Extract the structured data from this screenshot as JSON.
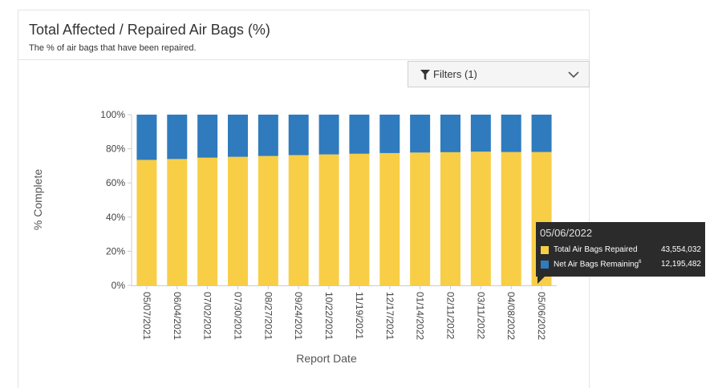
{
  "header": {
    "title": "Total Affected / Repaired Air Bags (%)",
    "subtitle": "The % of air bags that have been repaired."
  },
  "filters": {
    "label": "Filters (1)",
    "icon": "funnel-icon",
    "dropdown_icon": "chevron-down-icon"
  },
  "colors": {
    "repaired": "#f8ce46",
    "remaining": "#2f7bbd",
    "axis": "#666666"
  },
  "chart_data": {
    "type": "bar",
    "stacked": "percent",
    "ylabel": "% Complete",
    "xlabel": "Report Date",
    "ylim": [
      0,
      100
    ],
    "yticks": [
      "0%",
      "20%",
      "40%",
      "60%",
      "80%",
      "100%"
    ],
    "grid": false,
    "categories": [
      "05/07/2021",
      "06/04/2021",
      "07/02/2021",
      "07/30/2021",
      "08/27/2021",
      "09/24/2021",
      "10/22/2021",
      "11/19/2021",
      "12/17/2021",
      "01/14/2022",
      "02/11/2022",
      "03/11/2022",
      "04/08/2022",
      "05/06/2022"
    ],
    "series": [
      {
        "name": "Total Air Bags Repaired",
        "values": [
          73.5,
          74.0,
          74.8,
          75.3,
          75.8,
          76.3,
          76.7,
          77.1,
          77.5,
          77.8,
          78.0,
          78.3,
          78.1,
          78.1
        ]
      },
      {
        "name": "Net Air Bags Remaining",
        "values": [
          26.5,
          26.0,
          25.2,
          24.7,
          24.2,
          23.7,
          23.3,
          22.9,
          22.5,
          22.2,
          22.0,
          21.7,
          21.9,
          21.9
        ]
      }
    ]
  },
  "tooltip": {
    "date": "05/06/2022",
    "rows": [
      {
        "label": "Total Air Bags Repaired",
        "sup": "",
        "value": "43,554,032"
      },
      {
        "label": "Net Air Bags Remaining",
        "sup": "6",
        "value": "12,195,482"
      }
    ]
  }
}
